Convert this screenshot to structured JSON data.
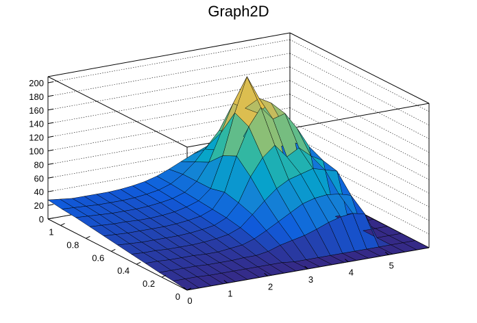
{
  "chart_data": {
    "type": "surface",
    "title": "Graph2D",
    "xlabel": "",
    "ylabel": "",
    "zlabel": "",
    "xlim": [
      0,
      6
    ],
    "ylim": [
      0,
      1.1
    ],
    "zlim": [
      0,
      210
    ],
    "x_ticks": [
      "0",
      "1",
      "2",
      "3",
      "4",
      "5"
    ],
    "y_ticks": [
      "0",
      "0.2",
      "0.4",
      "0.6",
      "0.8",
      "1"
    ],
    "z_ticks": [
      "0",
      "20",
      "40",
      "60",
      "80",
      "100",
      "120",
      "140",
      "160",
      "180",
      "200"
    ],
    "grid": true,
    "colormap": [
      "#352a87",
      "#0f5cdd",
      "#1481d6",
      "#06a4ca",
      "#2eb7a4",
      "#87bf77",
      "#d1bb59",
      "#fec832",
      "#f9fb0e"
    ],
    "grid_x": [
      0,
      0.3,
      0.6,
      0.9,
      1.2,
      1.5,
      1.8,
      2.1,
      2.4,
      2.7,
      3.0,
      3.3,
      3.6,
      3.9,
      4.2,
      4.5,
      4.8,
      5.1,
      5.4,
      5.7,
      6.0
    ],
    "grid_y": [
      0,
      0.11,
      0.22,
      0.33,
      0.44,
      0.55,
      0.66,
      0.77,
      0.88,
      0.99,
      1.1
    ],
    "z": [
      [
        0,
        0,
        0,
        0,
        0,
        0,
        0,
        0,
        0,
        0,
        0,
        0,
        0,
        0,
        0,
        0,
        0,
        0,
        0,
        0,
        0
      ],
      [
        3,
        3,
        3,
        2,
        2,
        2,
        2,
        2,
        2,
        2,
        0,
        0,
        0,
        0,
        0,
        0,
        0,
        0,
        0,
        0,
        0
      ],
      [
        5,
        5,
        5,
        5,
        4,
        4,
        4,
        5,
        5,
        8,
        14,
        18,
        22,
        28,
        35,
        40,
        42,
        38,
        0,
        0,
        0
      ],
      [
        8,
        8,
        7,
        7,
        7,
        6,
        6,
        8,
        10,
        16,
        25,
        35,
        45,
        55,
        60,
        62,
        60,
        55,
        0,
        0,
        0
      ],
      [
        11,
        10,
        10,
        9,
        9,
        9,
        10,
        12,
        15,
        22,
        38,
        55,
        70,
        80,
        85,
        90,
        85,
        80,
        0,
        0,
        0
      ],
      [
        14,
        13,
        12,
        12,
        12,
        12,
        13,
        15,
        18,
        26,
        45,
        80,
        105,
        120,
        100,
        110,
        95,
        85,
        0,
        0,
        0
      ],
      [
        17,
        16,
        15,
        15,
        15,
        15,
        16,
        18,
        21,
        28,
        50,
        100,
        140,
        165,
        145,
        150,
        125,
        95,
        0,
        0,
        0
      ],
      [
        20,
        19,
        18,
        18,
        17,
        17,
        18,
        20,
        24,
        30,
        45,
        90,
        150,
        200,
        165,
        155,
        120,
        90,
        0,
        0,
        0
      ],
      [
        23,
        22,
        21,
        20,
        20,
        20,
        21,
        23,
        26,
        32,
        45,
        70,
        110,
        150,
        140,
        130,
        100,
        75,
        0,
        0,
        0
      ],
      [
        25,
        24,
        23,
        22,
        22,
        22,
        23,
        25,
        28,
        34,
        45,
        60,
        80,
        100,
        95,
        85,
        70,
        55,
        0,
        0,
        0
      ],
      [
        28,
        26,
        24,
        24,
        24,
        24,
        25,
        27,
        30,
        35,
        42,
        50,
        58,
        62,
        58,
        52,
        45,
        40,
        0,
        0,
        0
      ]
    ]
  }
}
